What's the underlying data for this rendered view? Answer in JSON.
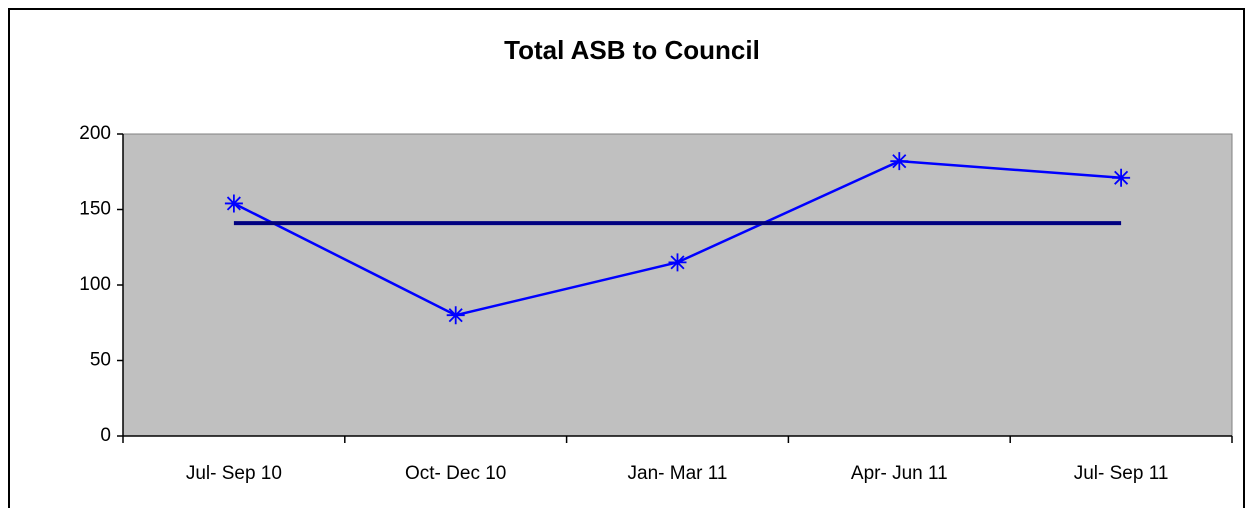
{
  "chart_data": {
    "type": "line",
    "title": "Total ASB to Council",
    "categories": [
      "Jul- Sep 10",
      "Oct- Dec 10",
      "Jan- Mar 11",
      "Apr- Jun 11",
      "Jul- Sep 11"
    ],
    "series": [
      {
        "color": "#0000ff",
        "marker": "asterisk",
        "values": [
          154,
          80,
          115,
          182,
          171
        ]
      },
      {
        "color": "#000080",
        "marker": "none",
        "values": [
          141,
          141,
          141,
          141,
          141
        ]
      }
    ],
    "ylim": [
      0,
      200
    ],
    "yticks": [
      0,
      50,
      100,
      150,
      200
    ],
    "grid": false,
    "plot_background": "#c0c0c0"
  }
}
